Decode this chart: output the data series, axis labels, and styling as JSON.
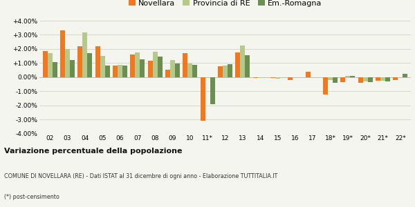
{
  "years": [
    "02",
    "03",
    "04",
    "05",
    "06",
    "07",
    "08",
    "09",
    "10",
    "11*",
    "12",
    "13",
    "14",
    "15",
    "16",
    "17",
    "18*",
    "19*",
    "20*",
    "21*",
    "22*"
  ],
  "novellara": [
    1.85,
    3.3,
    2.2,
    2.2,
    0.8,
    1.6,
    1.15,
    0.55,
    1.7,
    -3.1,
    0.75,
    1.75,
    -0.05,
    -0.05,
    -0.2,
    0.4,
    -1.25,
    -0.35,
    -0.4,
    -0.25,
    -0.2
  ],
  "provincia_re": [
    1.7,
    2.0,
    3.15,
    1.5,
    0.85,
    1.75,
    1.8,
    1.2,
    0.95,
    -0.05,
    0.8,
    2.25,
    -0.05,
    -0.1,
    0.0,
    0.0,
    -0.2,
    0.1,
    -0.3,
    -0.25,
    0.0
  ],
  "emilia": [
    1.05,
    1.2,
    1.7,
    0.8,
    0.8,
    1.25,
    1.45,
    0.95,
    0.85,
    -1.9,
    0.9,
    1.55,
    0.0,
    0.0,
    0.0,
    0.0,
    -0.4,
    0.1,
    -0.35,
    -0.3,
    0.25
  ],
  "color_novellara": "#f07820",
  "color_provincia": "#b5c98a",
  "color_emilia": "#6b8f50",
  "title_bold": "Variazione percentuale della popolazione",
  "subtitle": "COMUNE DI NOVELLARA (RE) - Dati ISTAT al 31 dicembre di ogni anno - Elaborazione TUTTITALIA.IT",
  "footnote": "(*) post-censimento",
  "legend_labels": [
    "Novellara",
    "Provincia di RE",
    "Em.-Romagna"
  ],
  "ylim": [
    -4.0,
    4.0
  ],
  "yticks": [
    -4.0,
    -3.0,
    -2.0,
    -1.0,
    0.0,
    1.0,
    2.0,
    3.0,
    4.0
  ],
  "bg_color": "#f5f5f0",
  "grid_color": "#d8d8cc"
}
